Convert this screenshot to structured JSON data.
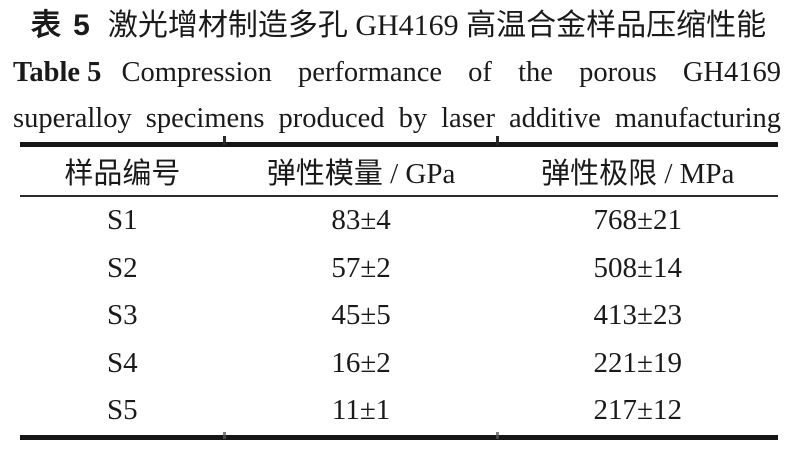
{
  "caption": {
    "zh_label": "表 5",
    "zh_text": "激光增材制造多孔 GH4169 高温合金样品压缩性能",
    "en_label": "Table 5",
    "en_text": "Compression performance of the porous GH4169",
    "en_text_line2": "superalloy specimens produced by laser additive manufacturing"
  },
  "table": {
    "columns": [
      "样品编号",
      "弹性模量 / GPa",
      "弹性极限 / MPa"
    ],
    "rows": [
      [
        "S1",
        "83±4",
        "768±21"
      ],
      [
        "S2",
        "57±2",
        "508±14"
      ],
      [
        "S3",
        "45±5",
        "413±23"
      ],
      [
        "S4",
        "16±2",
        "221±19"
      ],
      [
        "S5",
        "11±1",
        "217±12"
      ]
    ]
  },
  "colors": {
    "text": "#1a1a1a",
    "rule": "#161616",
    "background": "#ffffff"
  }
}
